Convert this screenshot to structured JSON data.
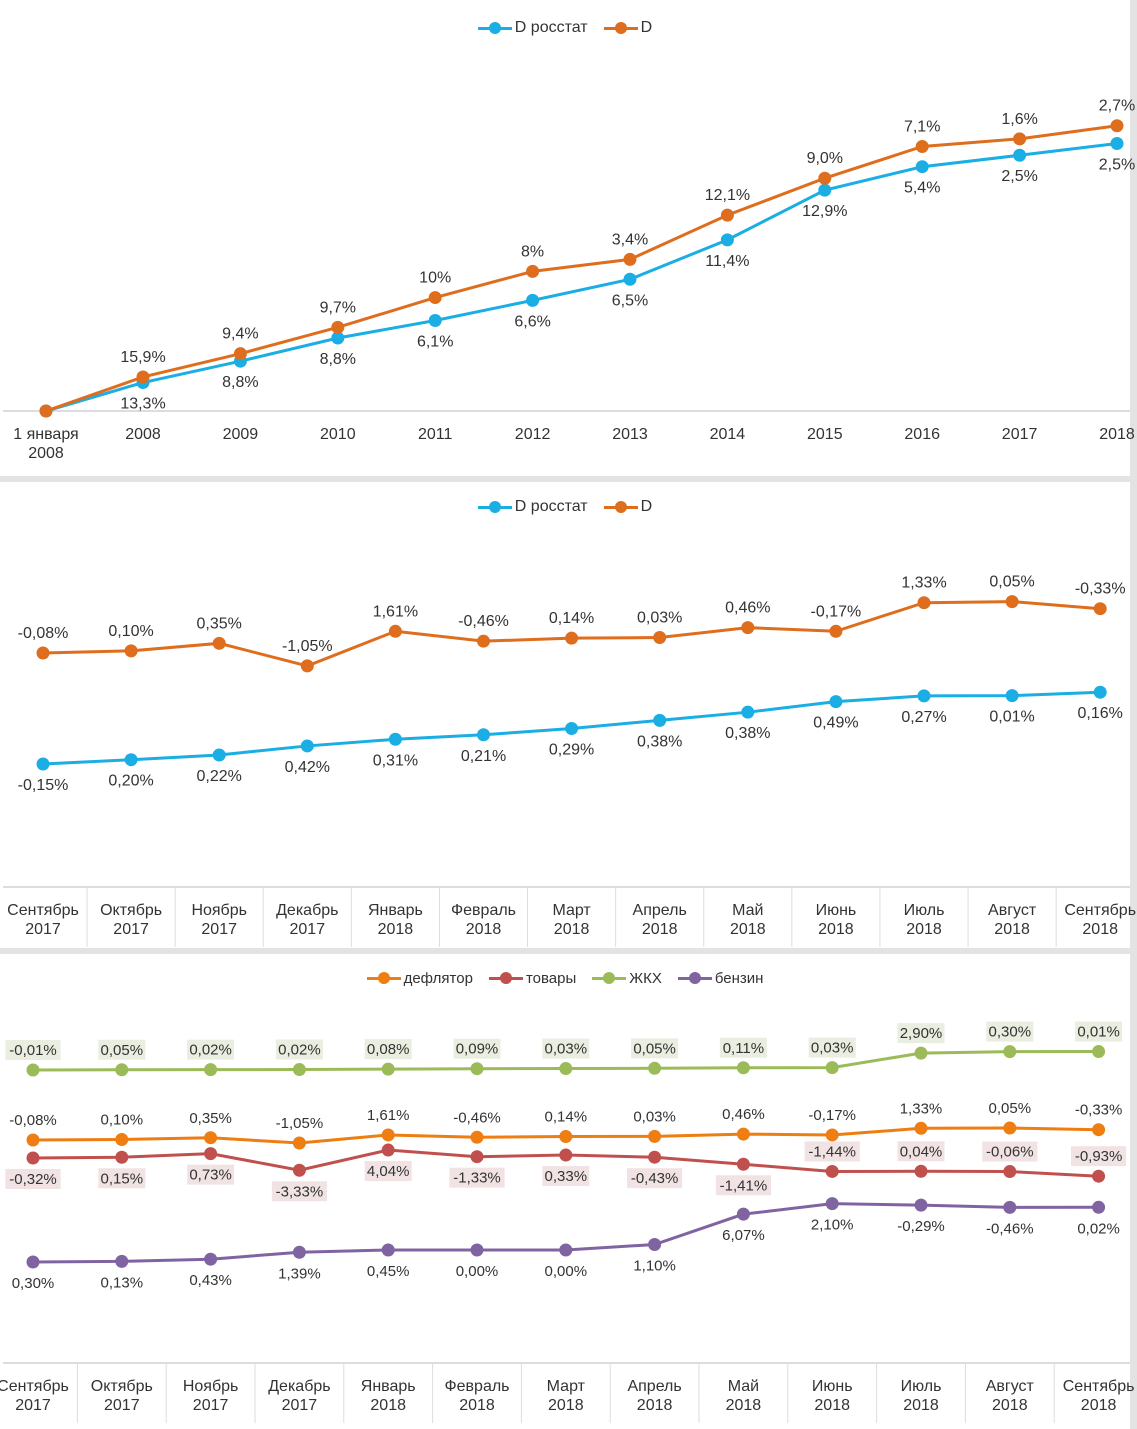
{
  "chart_data": [
    {
      "type": "line",
      "categories": [
        [
          "1 января",
          "2008"
        ],
        [
          "2008"
        ],
        [
          "2009"
        ],
        [
          "2010"
        ],
        [
          "2011"
        ],
        [
          "2012"
        ],
        [
          "2013"
        ],
        [
          "2014"
        ],
        [
          "2015"
        ],
        [
          "2016"
        ],
        [
          "2017"
        ],
        [
          "2018"
        ]
      ],
      "legend_position": "top",
      "grid": false,
      "series": [
        {
          "name": "D росстат",
          "color": "#1aaee5",
          "labels": [
            "",
            "13,3%",
            "8,8%",
            "8,8%",
            "6,1%",
            "6,6%",
            "6,5%",
            "11,4%",
            "12,9%",
            "5,4%",
            "2,5%",
            "2,5%"
          ]
        },
        {
          "name": "D",
          "color": "#de6e1e",
          "labels": [
            "",
            "15,9%",
            "9,4%",
            "9,7%",
            "10%",
            "8%",
            "3,4%",
            "12,1%",
            "9,0%",
            "7,1%",
            "1,6%",
            "2,7%"
          ]
        }
      ]
    },
    {
      "type": "line",
      "categories": [
        [
          "Сентябрь",
          "2017"
        ],
        [
          "Октябрь",
          "2017"
        ],
        [
          "Ноябрь",
          "2017"
        ],
        [
          "Декабрь",
          "2017"
        ],
        [
          "Январь",
          "2018"
        ],
        [
          "Февраль",
          "2018"
        ],
        [
          "Март",
          "2018"
        ],
        [
          "Апрель",
          "2018"
        ],
        [
          "Май",
          "2018"
        ],
        [
          "Июнь",
          "2018"
        ],
        [
          "Июль",
          "2018"
        ],
        [
          "Август",
          "2018"
        ],
        [
          "Сентябрь",
          "2018"
        ]
      ],
      "legend_position": "top",
      "grid": false,
      "series": [
        {
          "name": "D росстат",
          "color": "#1aaee5",
          "labels": [
            "-0,15%",
            "0,20%",
            "0,22%",
            "0,42%",
            "0,31%",
            "0,21%",
            "0,29%",
            "0,38%",
            "0,38%",
            "0,49%",
            "0,27%",
            "0,01%",
            "0,16%"
          ]
        },
        {
          "name": "D",
          "color": "#de6e1e",
          "labels": [
            "-0,08%",
            "0,10%",
            "0,35%",
            "-1,05%",
            "1,61%",
            "-0,46%",
            "0,14%",
            "0,03%",
            "0,46%",
            "-0,17%",
            "1,33%",
            "0,05%",
            "-0,33%"
          ]
        }
      ]
    },
    {
      "type": "line",
      "categories": [
        [
          "Сентябрь",
          "2017"
        ],
        [
          "Октябрь",
          "2017"
        ],
        [
          "Ноябрь",
          "2017"
        ],
        [
          "Декабрь",
          "2017"
        ],
        [
          "Январь",
          "2018"
        ],
        [
          "Февраль",
          "2018"
        ],
        [
          "Март",
          "2018"
        ],
        [
          "Апрель",
          "2018"
        ],
        [
          "Май",
          "2018"
        ],
        [
          "Июнь",
          "2018"
        ],
        [
          "Июль",
          "2018"
        ],
        [
          "Август",
          "2018"
        ],
        [
          "Сентябрь",
          "2018"
        ]
      ],
      "legend_position": "top",
      "grid": false,
      "series": [
        {
          "name": "дефлятор",
          "color": "#ee7d12",
          "labels": [
            "-0,08%",
            "0,10%",
            "0,35%",
            "-1,05%",
            "1,61%",
            "-0,46%",
            "0,14%",
            "0,03%",
            "0,46%",
            "-0,17%",
            "1,33%",
            "0,05%",
            "-0,33%"
          ]
        },
        {
          "name": "товары",
          "color": "#c0504d",
          "labels": [
            "-0,32%",
            "0,15%",
            "0,73%",
            "-3,33%",
            "4,04%",
            "-1,33%",
            "0,33%",
            "-0,43%",
            "-1,41%",
            "-1,44%",
            "0,04%",
            "-0,06%",
            "-0,93%"
          ]
        },
        {
          "name": "ЖКХ",
          "color": "#9bbb59",
          "labels": [
            "-0,01%",
            "0,05%",
            "0,02%",
            "0,02%",
            "0,08%",
            "0,09%",
            "0,03%",
            "0,05%",
            "0,11%",
            "0,03%",
            "2,90%",
            "0,30%",
            "0,01%"
          ]
        },
        {
          "name": "бензин",
          "color": "#8064a2",
          "labels": [
            "0,30%",
            "0,13%",
            "0,43%",
            "1,39%",
            "0,45%",
            "0,00%",
            "0,00%",
            "1,10%",
            "6,07%",
            "2,10%",
            "-0,29%",
            "-0,46%",
            "0,02%"
          ]
        }
      ]
    }
  ]
}
